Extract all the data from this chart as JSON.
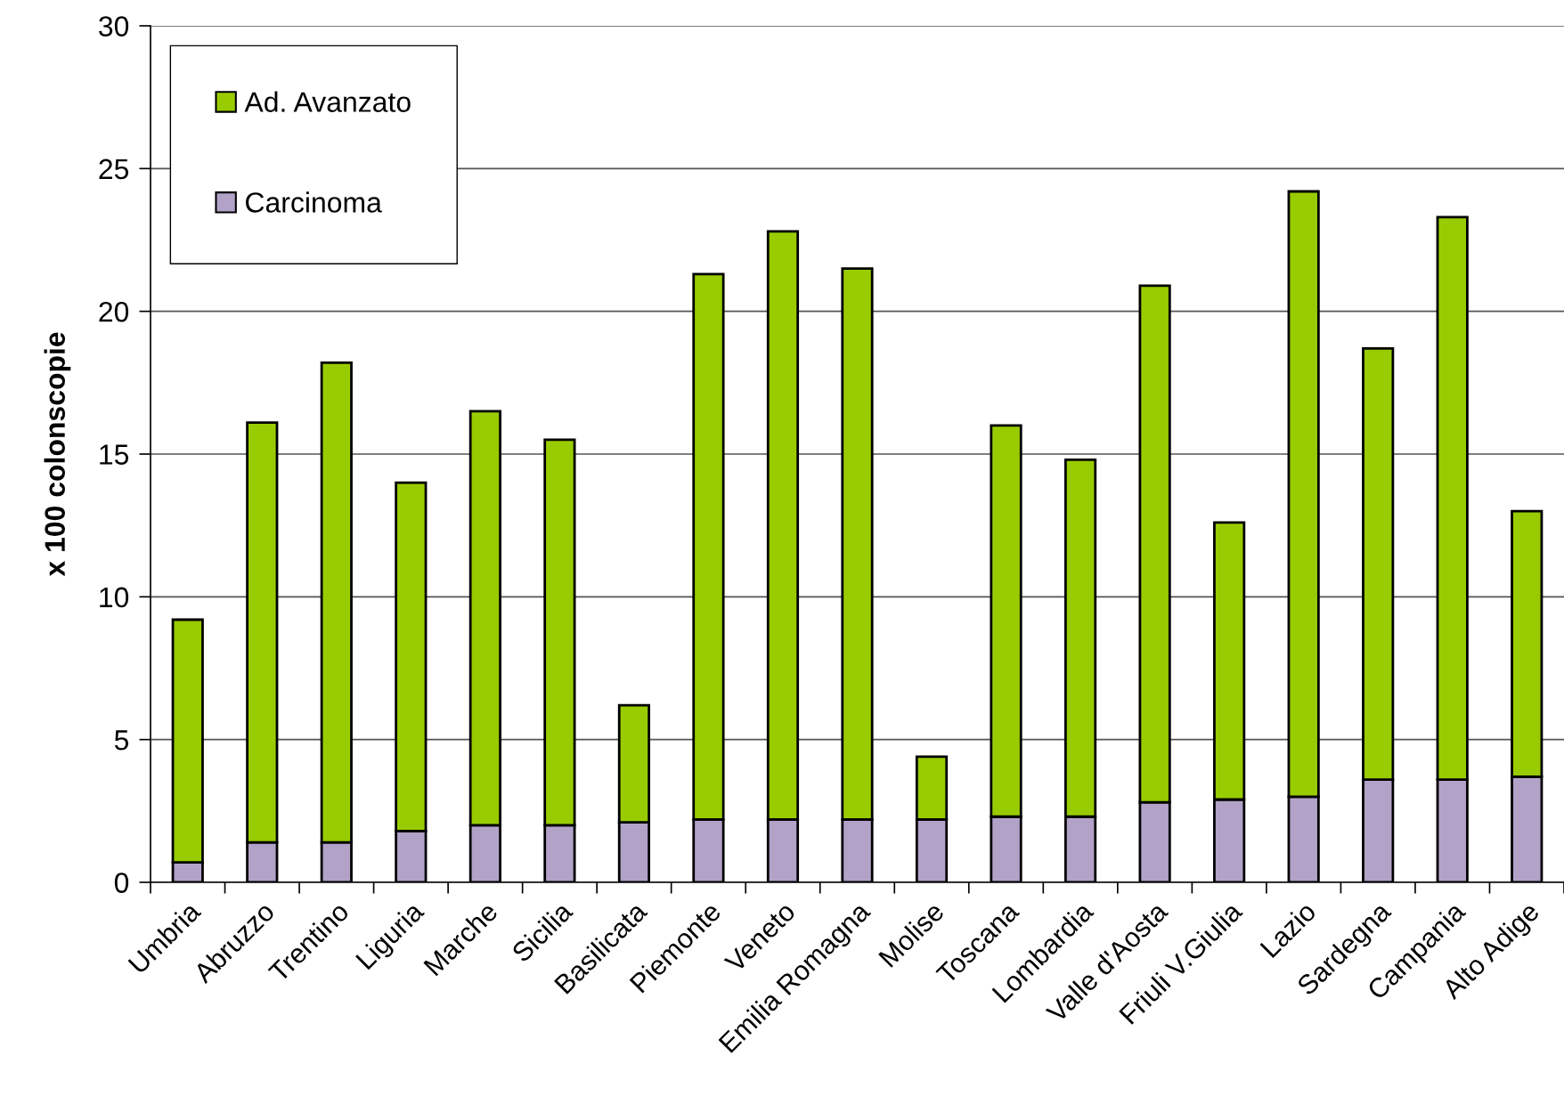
{
  "chart_data": {
    "type": "bar",
    "ylabel": "x 100 colonscopie",
    "categories": [
      "Umbria",
      "Abruzzo",
      "Trentino",
      "Liguria",
      "Marche",
      "Sicilia",
      "Basilicata",
      "Piemonte",
      "Veneto",
      "Emilia Romagna",
      "Molise",
      "Toscana",
      "Lombardia",
      "Valle d'Aosta",
      "Friuli V.Giulia",
      "Lazio",
      "Sardegna",
      "Campania",
      "Alto Adige"
    ],
    "series": [
      {
        "name": "Carcinoma",
        "color": "#b2a2c8",
        "values": [
          0.7,
          1.4,
          1.4,
          1.8,
          2.0,
          2.0,
          2.1,
          2.2,
          2.2,
          2.2,
          2.2,
          2.3,
          2.3,
          2.8,
          2.9,
          3.0,
          3.6,
          3.6,
          3.7
        ]
      },
      {
        "name": "Ad. Avanzato",
        "color": "#99cc00",
        "values": [
          8.5,
          14.7,
          16.8,
          12.2,
          14.5,
          13.5,
          4.1,
          19.1,
          20.6,
          19.3,
          2.2,
          13.7,
          12.5,
          18.1,
          9.7,
          21.2,
          15.1,
          19.7,
          9.3
        ]
      }
    ],
    "stacked": true,
    "ylim": [
      0,
      30
    ],
    "yticks": [
      0,
      5,
      10,
      15,
      20,
      25,
      30
    ],
    "grid": "y",
    "legend": "top left"
  }
}
